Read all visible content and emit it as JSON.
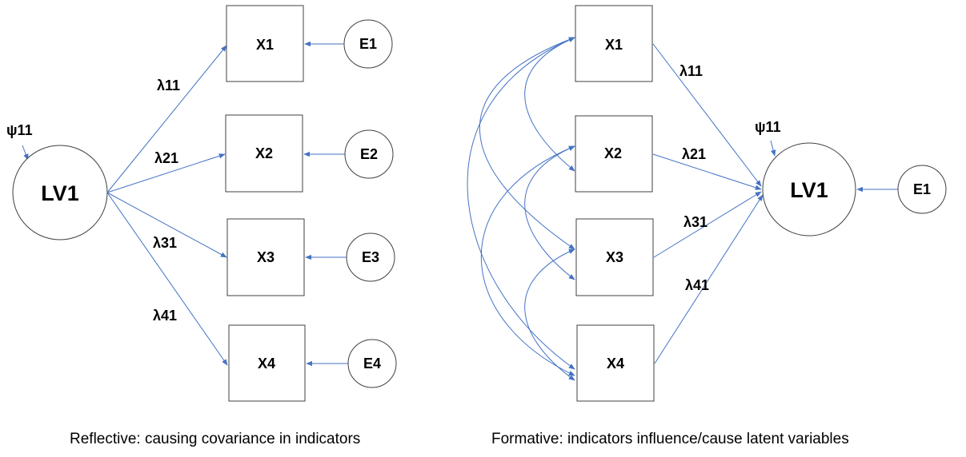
{
  "reflective": {
    "latent": "LV1",
    "latent_error": "ψ11",
    "indicators": [
      "X1",
      "X2",
      "X3",
      "X4"
    ],
    "errors": [
      "E1",
      "E2",
      "E3",
      "E4"
    ],
    "loadings": [
      "λ11",
      "λ21",
      "λ31",
      "λ41"
    ],
    "caption": "Reflective: causing covariance in indicators"
  },
  "formative": {
    "latent": "LV1",
    "latent_error": "ψ11",
    "indicators": [
      "X1",
      "X2",
      "X3",
      "X4"
    ],
    "error": "E1",
    "weights": [
      "λ11",
      "λ21",
      "λ31",
      "λ41"
    ],
    "caption": "Formative: indicators influence/cause latent variables"
  },
  "colors": {
    "arrow": "#4472c4",
    "outline": "#404040"
  }
}
